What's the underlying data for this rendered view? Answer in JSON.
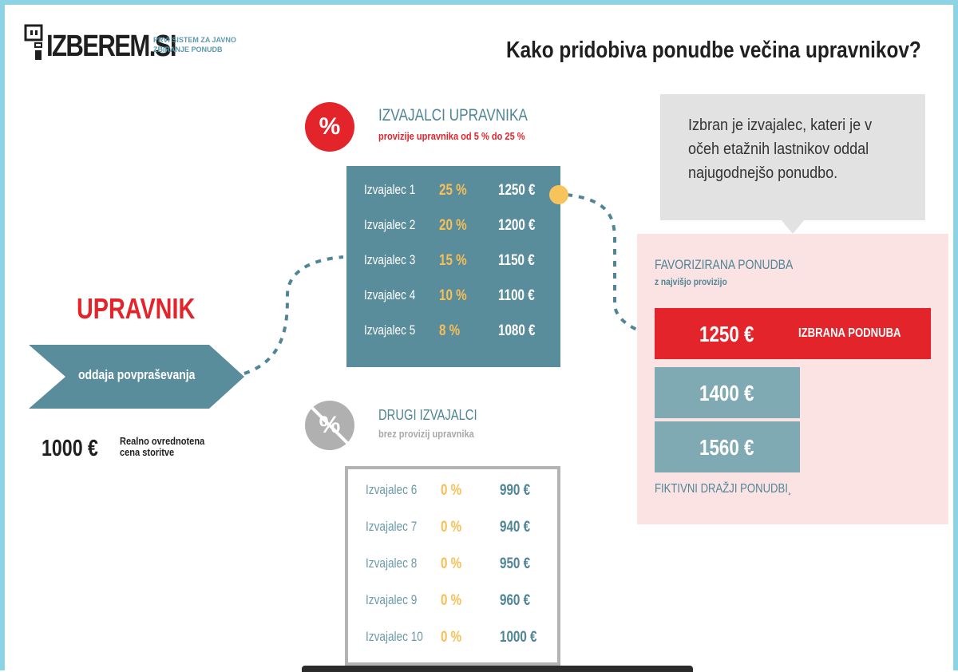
{
  "logo": {
    "name": "IZBEREM.SI",
    "tagline": "PRVI SISTEM ZA JAVNO ZBIRANJE PONUDB"
  },
  "title": "Kako pridobiva ponudbe večina upravnikov?",
  "left": {
    "role": "UPRAVNIK",
    "action": "oddaja povpraševanja",
    "price": "1000 €",
    "price_label": "Realno ovrednotena cena storitve"
  },
  "group1": {
    "badge": "%",
    "title": "IZVAJALCI UPRAVNIKA",
    "subtitle": "provizije upravnika od 5 % do 25 %",
    "rows": [
      {
        "name": "Izvajalec 1",
        "pct": "25 %",
        "price": "1250 €"
      },
      {
        "name": "Izvajalec 2",
        "pct": "20 %",
        "price": "1200 €"
      },
      {
        "name": "Izvajalec 3",
        "pct": "15 %",
        "price": "1150 €"
      },
      {
        "name": "Izvajalec 4",
        "pct": "10 %",
        "price": "1100 €"
      },
      {
        "name": "Izvajalec 5",
        "pct": "8 %",
        "price": "1080 €"
      }
    ]
  },
  "group2": {
    "badge": "%",
    "title": "DRUGI IZVAJALCI",
    "subtitle": "brez provizij upravnika",
    "rows": [
      {
        "name": "Izvajalec 6",
        "pct": "0 %",
        "price": "990 €"
      },
      {
        "name": "Izvajalec 7",
        "pct": "0 %",
        "price": "940 €"
      },
      {
        "name": "Izvajalec 8",
        "pct": "0 %",
        "price": "950 €"
      },
      {
        "name": "Izvajalec 9",
        "pct": "0 %",
        "price": "960 €"
      },
      {
        "name": "Izvajalec 10",
        "pct": "0 %",
        "price": "1000 €"
      }
    ]
  },
  "note": "Izbran je izvajalec, kateri je v očeh etažnih lastnikov oddal najugodnejšo ponudbo.",
  "favorite": {
    "title": "FAVORIZIRANA PONUDBA",
    "subtitle": "z najvišjo provizijo",
    "chosen_price": "1250 €",
    "chosen_label": "IZBRANA PODNUBA",
    "fake_prices": [
      "1400 €",
      "1560 €"
    ],
    "fake_label": "FIKTIVNI DRAŽJI PONUDBI¸"
  },
  "colors": {
    "accent_red": "#e3242b",
    "teal": "#5a8d9c",
    "yellow": "#f7bf56",
    "frame": "#8ed3e4"
  }
}
